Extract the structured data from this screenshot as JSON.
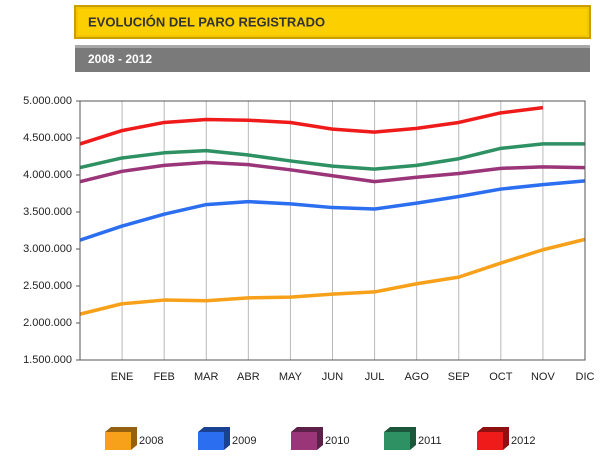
{
  "chart_data": {
    "type": "line",
    "title": "EVOLUCIÓN DEL PARO REGISTRADO",
    "subtitle": "2008 - 2012",
    "categories": [
      null,
      "ENE",
      "FEB",
      "MAR",
      "ABR",
      "MAY",
      "JUN",
      "JUL",
      "AGO",
      "SEP",
      "OCT",
      "NOV",
      "DIC"
    ],
    "series": [
      {
        "name": "2008",
        "color": "#f7a11a",
        "values": [
          2120000,
          2260000,
          2310000,
          2300000,
          2340000,
          2350000,
          2390000,
          2420000,
          2530000,
          2620000,
          2810000,
          2990000,
          3130000
        ]
      },
      {
        "name": "2009",
        "color": "#2b6ef0",
        "values": [
          3120000,
          3310000,
          3470000,
          3600000,
          3640000,
          3610000,
          3560000,
          3540000,
          3620000,
          3710000,
          3810000,
          3870000,
          3920000
        ]
      },
      {
        "name": "2010",
        "color": "#9b3579",
        "values": [
          3910000,
          4050000,
          4130000,
          4170000,
          4140000,
          4070000,
          3990000,
          3910000,
          3970000,
          4020000,
          4090000,
          4110000,
          4100000
        ]
      },
      {
        "name": "2011",
        "color": "#2e9163",
        "values": [
          4100000,
          4230000,
          4300000,
          4330000,
          4270000,
          4190000,
          4120000,
          4080000,
          4130000,
          4220000,
          4360000,
          4420000,
          4420000
        ]
      },
      {
        "name": "2012",
        "color": "#ef1a1a",
        "values": [
          4420000,
          4600000,
          4710000,
          4750000,
          4740000,
          4710000,
          4620000,
          4580000,
          4630000,
          4710000,
          4840000,
          4910000,
          null
        ]
      }
    ],
    "ylim": [
      1500000,
      5000000
    ],
    "yticks": [
      {
        "value": 1500000,
        "label": "1.500.000"
      },
      {
        "value": 2000000,
        "label": "2.000.000"
      },
      {
        "value": 2500000,
        "label": "2.500.000"
      },
      {
        "value": 3000000,
        "label": "3.000.000"
      },
      {
        "value": 3500000,
        "label": "3.500.000"
      },
      {
        "value": 4000000,
        "label": "4.000.000"
      },
      {
        "value": 4500000,
        "label": "4.500.000"
      },
      {
        "value": 5000000,
        "label": "5.000.000"
      }
    ],
    "grid": "x"
  }
}
